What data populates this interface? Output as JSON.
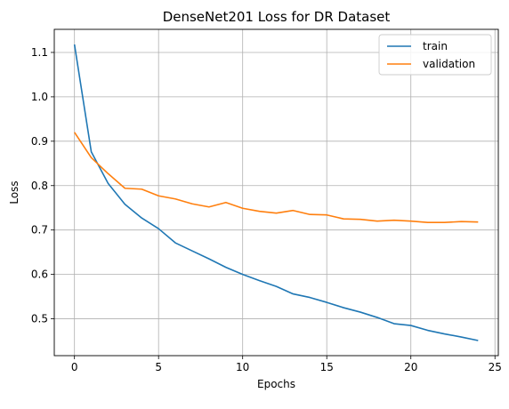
{
  "chart_data": {
    "type": "line",
    "title": "DenseNet201 Loss for DR Dataset",
    "xlabel": "Epochs",
    "ylabel": "Loss",
    "xlim": [
      -1.2,
      25.2
    ],
    "ylim": [
      0.417,
      1.152
    ],
    "x_ticks": [
      0,
      5,
      10,
      15,
      20,
      25
    ],
    "y_ticks": [
      0.5,
      0.6,
      0.7,
      0.8,
      0.9,
      1.0,
      1.1
    ],
    "x_tick_labels": [
      "0",
      "5",
      "10",
      "15",
      "20",
      "25"
    ],
    "y_tick_labels": [
      "0.5",
      "0.6",
      "0.7",
      "0.8",
      "0.9",
      "1.0",
      "1.1"
    ],
    "grid": true,
    "legend_position": "top-right",
    "x": [
      0,
      1,
      2,
      3,
      4,
      5,
      6,
      7,
      8,
      9,
      10,
      11,
      12,
      13,
      14,
      15,
      16,
      17,
      18,
      19,
      20,
      21,
      22,
      23,
      24
    ],
    "series": [
      {
        "name": "train",
        "color": "#1f77b4",
        "values": [
          1.118,
          0.876,
          0.805,
          0.758,
          0.727,
          0.703,
          0.671,
          0.653,
          0.635,
          0.616,
          0.6,
          0.586,
          0.573,
          0.556,
          0.548,
          0.537,
          0.525,
          0.515,
          0.503,
          0.489,
          0.485,
          0.474,
          0.466,
          0.459,
          0.451
        ]
      },
      {
        "name": "validation",
        "color": "#ff7f0e",
        "values": [
          0.92,
          0.863,
          0.827,
          0.794,
          0.792,
          0.777,
          0.77,
          0.759,
          0.752,
          0.762,
          0.749,
          0.742,
          0.738,
          0.744,
          0.735,
          0.734,
          0.725,
          0.724,
          0.72,
          0.722,
          0.72,
          0.717,
          0.717,
          0.719,
          0.718
        ]
      }
    ]
  }
}
